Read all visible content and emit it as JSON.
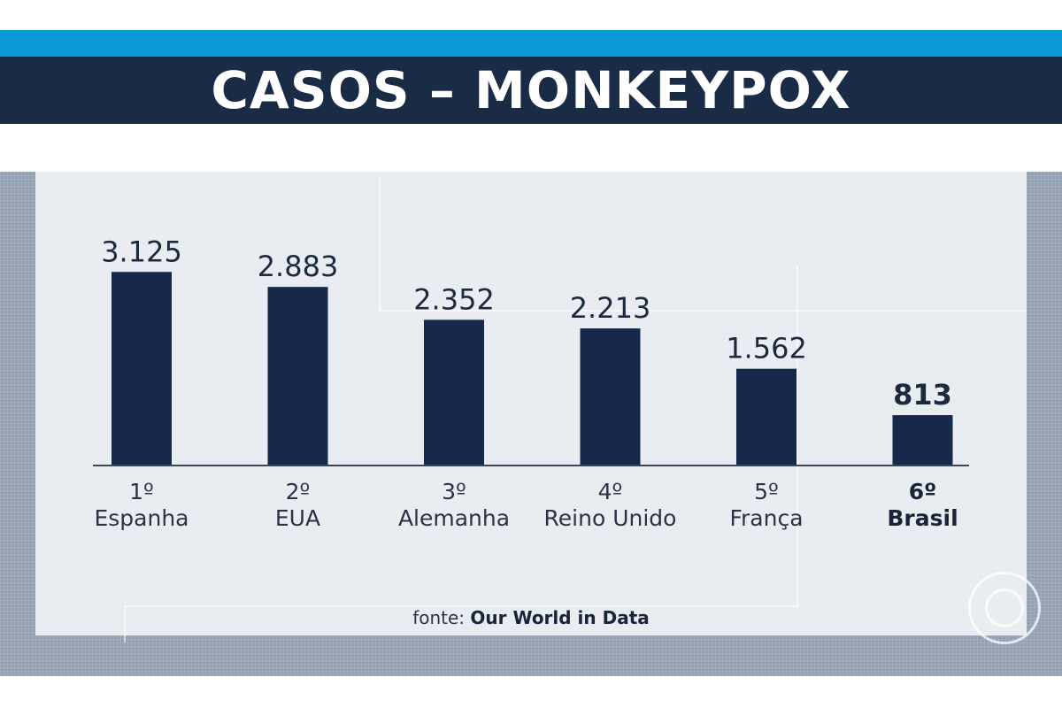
{
  "header": {
    "title": "CASOS – MONKEYPOX",
    "accent_color": "#0a97d6",
    "title_bg_color": "#1a2b45"
  },
  "chart_data": {
    "type": "bar",
    "title": "CASOS – MONKEYPOX",
    "xlabel": "",
    "ylabel": "",
    "categories": [
      "Espanha",
      "EUA",
      "Alemanha",
      "Reino Unido",
      "França",
      "Brasil"
    ],
    "ranks": [
      "1º",
      "2º",
      "3º",
      "4º",
      "5º",
      "6º"
    ],
    "values": [
      3125,
      2883,
      2352,
      2213,
      1562,
      813
    ],
    "value_labels": [
      "3.125",
      "2.883",
      "2.352",
      "2.213",
      "1.562",
      "813"
    ],
    "highlight_index": 5,
    "bar_color": "#16294a",
    "grid": false,
    "legend": "none"
  },
  "footer": {
    "source_prefix": "fonte:",
    "source_name": "Our World in Data"
  },
  "watermark": {
    "icon": "broadcaster-logo-icon"
  }
}
